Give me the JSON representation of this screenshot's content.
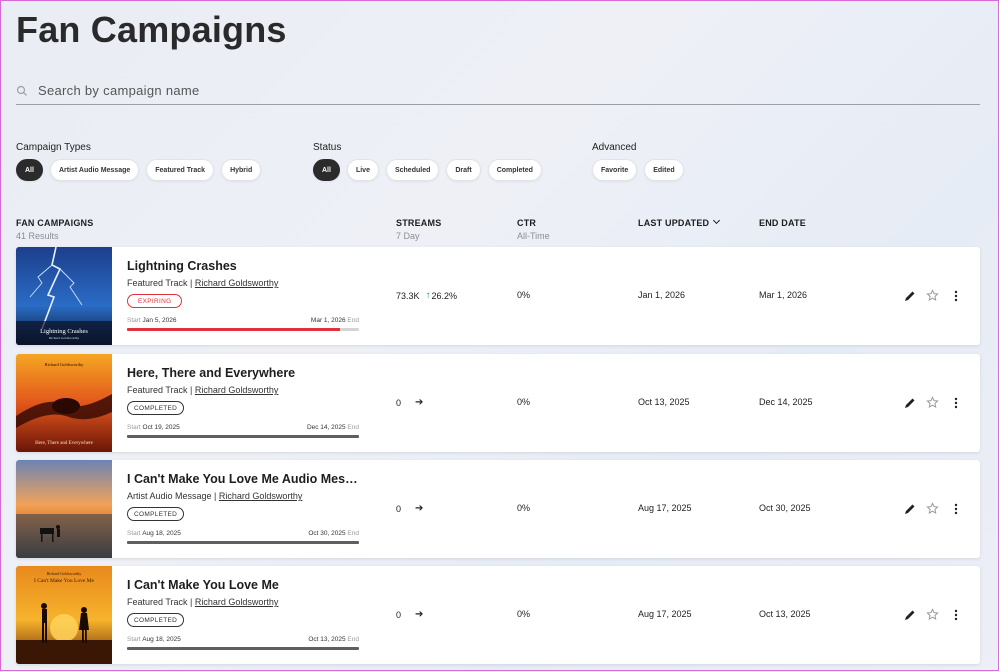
{
  "page_title": "Fan Campaigns",
  "search": {
    "placeholder": "Search by campaign name"
  },
  "filters": {
    "campaign_types": {
      "label": "Campaign Types",
      "chips": [
        "All",
        "Artist Audio Message",
        "Featured Track",
        "Hybrid"
      ],
      "active": "All"
    },
    "status": {
      "label": "Status",
      "chips": [
        "All",
        "Live",
        "Scheduled",
        "Draft",
        "Completed"
      ],
      "active": "All"
    },
    "advanced": {
      "label": "Advanced",
      "chips": [
        "Favorite",
        "Edited"
      ]
    }
  },
  "table": {
    "col_campaigns": "FAN CAMPAIGNS",
    "results": "41 Results",
    "col_streams": "STREAMS",
    "col_streams_sub": "7 Day",
    "col_ctr": "CTR",
    "col_ctr_sub": "All-Time",
    "col_updated": "LAST UPDATED",
    "col_end": "END DATE"
  },
  "campaigns": [
    {
      "title": "Lightning Crashes",
      "type": "Featured Track",
      "artist": "Richard Goldsworthy",
      "status": "EXPIRING",
      "start_label": "Start",
      "start": "Jan 5, 2026",
      "end": "Mar 1, 2026",
      "end_label": "End",
      "progress": 0.92,
      "streams": "73.3K",
      "trend": "26.2%",
      "ctr": "0%",
      "updated": "Jan 1, 2026",
      "end_date": "Mar 1, 2026",
      "art_title": "Lightning Crashes",
      "art_artist": "Richard Goldsworthy"
    },
    {
      "title": "Here, There and Everywhere",
      "type": "Featured Track",
      "artist": "Richard Goldsworthy",
      "status": "COMPLETED",
      "start_label": "Start",
      "start": "Oct 19, 2025",
      "end": "Dec 14, 2025",
      "end_label": "End",
      "progress": 1.0,
      "streams": "0",
      "ctr": "0%",
      "updated": "Oct 13, 2025",
      "end_date": "Dec 14, 2025",
      "art_title": "Here, There and Everywhere",
      "art_artist": "Richard Goldsworthy"
    },
    {
      "title": "I Can't Make You Love Me Audio Messa...",
      "type": "Artist Audio Message",
      "artist": "Richard Goldsworthy",
      "status": "COMPLETED",
      "start_label": "Start",
      "start": "Aug 18, 2025",
      "end": "Oct 30, 2025",
      "end_label": "End",
      "progress": 1.0,
      "streams": "0",
      "ctr": "0%",
      "updated": "Aug 17, 2025",
      "end_date": "Oct 30, 2025"
    },
    {
      "title": "I Can't Make You Love Me",
      "type": "Featured Track",
      "artist": "Richard Goldsworthy",
      "status": "COMPLETED",
      "start_label": "Start",
      "start": "Aug 18, 2025",
      "end": "Oct 13, 2025",
      "end_label": "End",
      "progress": 1.0,
      "streams": "0",
      "ctr": "0%",
      "updated": "Aug 17, 2025",
      "end_date": "Oct 13, 2025",
      "art_title": "I Can't Make You Love Me",
      "art_artist": "Richard Goldsworthy"
    }
  ],
  "colors": {
    "accent_red": "#e0323c",
    "trend_green": "#1aa34a",
    "chip_active": "#2b2b2b"
  }
}
